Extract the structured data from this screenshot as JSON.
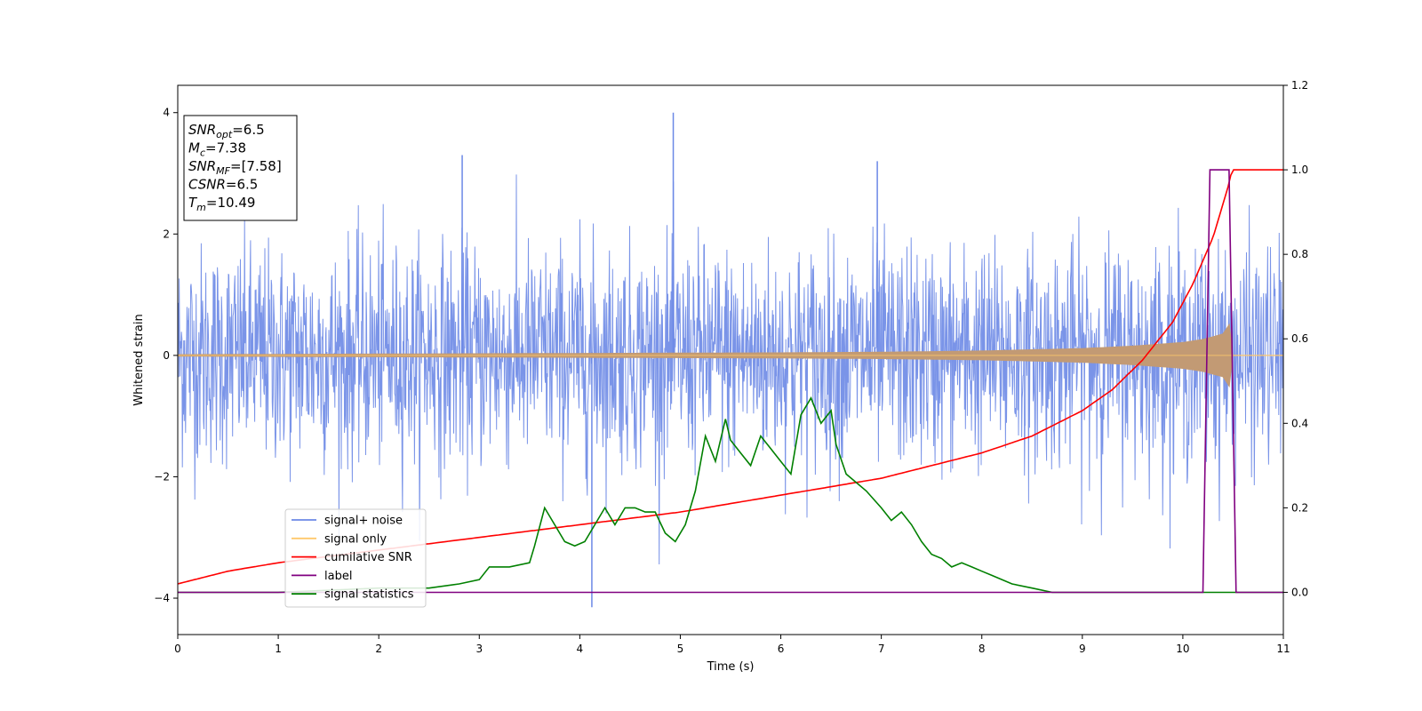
{
  "chart_data": {
    "type": "line",
    "xlabel": "Time (s)",
    "ylabel": "Whitened strain",
    "xlim": [
      0,
      11
    ],
    "ylim": [
      -4.6,
      4.45
    ],
    "y2lim": [
      -0.1,
      1.2
    ],
    "x_ticks": [
      "0",
      "1",
      "2",
      "3",
      "4",
      "5",
      "6",
      "7",
      "8",
      "9",
      "10",
      "11"
    ],
    "y_ticks": [
      "−4",
      "−2",
      "0",
      "2",
      "4"
    ],
    "y2_ticks": [
      "0.0",
      "0.2",
      "0.4",
      "0.6",
      "0.8",
      "1.0",
      "1.2"
    ],
    "annotation": {
      "lines": [
        {
          "base": "SNR",
          "sub": "opt",
          "value": "=6.5"
        },
        {
          "base": "M",
          "sub": "c",
          "value": "=7.38"
        },
        {
          "base": "SNR",
          "sub": "MF",
          "value": "=[7.58]"
        },
        {
          "base": "CSNR",
          "sub": "",
          "value": "=6.5"
        },
        {
          "base": "T",
          "sub": "m",
          "value": "=10.49"
        }
      ]
    },
    "legend": {
      "placement": "lower-left",
      "entries": [
        {
          "label": "signal+ noise",
          "color": "#6b88e6"
        },
        {
          "label": "signal only",
          "color": "#ffc86b"
        },
        {
          "label": "cumilative SNR",
          "color": "#ff0000"
        },
        {
          "label": "label",
          "color": "#800080"
        },
        {
          "label": "signal statistics",
          "color": "#008000"
        }
      ]
    },
    "series": [
      {
        "name": "signal+ noise",
        "axis": "left",
        "color": "#6b88e6",
        "description_values": {
          "x_start": 0,
          "x_end": 11,
          "typical_std": 0.9,
          "max_spike": 4.0,
          "min_spike": -4.15
        }
      },
      {
        "name": "signal only",
        "axis": "left",
        "color": "#ffc86b",
        "envelope": {
          "x": [
            0,
            2,
            4,
            6,
            7,
            8,
            9,
            9.5,
            10,
            10.2,
            10.4,
            10.49,
            10.5
          ],
          "amp": [
            0.02,
            0.03,
            0.04,
            0.05,
            0.06,
            0.08,
            0.12,
            0.16,
            0.22,
            0.27,
            0.36,
            0.6,
            0.0
          ]
        }
      },
      {
        "name": "cumilative SNR",
        "axis": "right",
        "color": "#ff0000",
        "x": [
          0,
          0.5,
          1,
          2,
          3,
          4,
          5,
          6,
          7,
          7.5,
          8,
          8.5,
          9,
          9.3,
          9.6,
          9.9,
          10.1,
          10.3,
          10.45,
          10.49,
          10.5,
          11
        ],
        "values": [
          0.02,
          0.05,
          0.07,
          0.1,
          0.13,
          0.16,
          0.19,
          0.23,
          0.27,
          0.3,
          0.33,
          0.37,
          0.43,
          0.48,
          0.55,
          0.64,
          0.73,
          0.84,
          0.96,
          1.0,
          1.0,
          1.0
        ]
      },
      {
        "name": "label",
        "axis": "right",
        "color": "#800080",
        "x": [
          0,
          10.2,
          10.27,
          10.46,
          10.53,
          11
        ],
        "values": [
          0,
          0,
          1,
          1,
          0,
          0
        ]
      },
      {
        "name": "signal statistics",
        "axis": "right",
        "color": "#008000",
        "x": [
          0,
          1,
          2,
          2.5,
          2.8,
          3,
          3.1,
          3.3,
          3.5,
          3.55,
          3.65,
          3.75,
          3.85,
          3.95,
          4.05,
          4.15,
          4.25,
          4.35,
          4.45,
          4.55,
          4.65,
          4.75,
          4.85,
          4.95,
          5.05,
          5.15,
          5.25,
          5.35,
          5.45,
          5.5,
          5.6,
          5.7,
          5.8,
          5.9,
          6.0,
          6.1,
          6.2,
          6.3,
          6.4,
          6.5,
          6.55,
          6.65,
          6.75,
          6.85,
          7.0,
          7.1,
          7.2,
          7.3,
          7.4,
          7.5,
          7.6,
          7.7,
          7.8,
          7.9,
          8.0,
          8.1,
          8.3,
          8.5,
          8.7,
          9.0,
          9.5,
          10.0,
          10.3,
          10.5,
          11.0
        ],
        "values": [
          0.0,
          0.0,
          0.01,
          0.01,
          0.02,
          0.03,
          0.06,
          0.06,
          0.07,
          0.11,
          0.2,
          0.16,
          0.12,
          0.11,
          0.12,
          0.16,
          0.2,
          0.16,
          0.2,
          0.2,
          0.19,
          0.19,
          0.14,
          0.12,
          0.16,
          0.24,
          0.37,
          0.31,
          0.41,
          0.36,
          0.33,
          0.3,
          0.37,
          0.34,
          0.31,
          0.28,
          0.42,
          0.46,
          0.4,
          0.43,
          0.35,
          0.28,
          0.26,
          0.24,
          0.2,
          0.17,
          0.19,
          0.16,
          0.12,
          0.09,
          0.08,
          0.06,
          0.07,
          0.06,
          0.05,
          0.04,
          0.02,
          0.01,
          0.0,
          0.0,
          0.0,
          0.0,
          0.0,
          0.0,
          0.0
        ]
      }
    ]
  }
}
